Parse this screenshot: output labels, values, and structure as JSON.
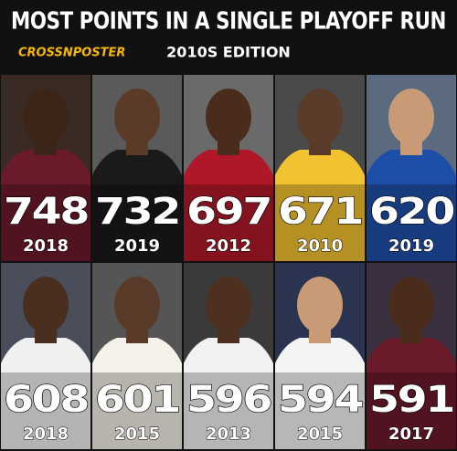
{
  "header": {
    "title": "MOST POINTS IN A SINGLE PLAYOFF RUN",
    "brand": "CROSSNPOSTER",
    "subtitle": "2010S EDITION"
  },
  "cards": [
    {
      "points": 748,
      "year": "2018"
    },
    {
      "points": 732,
      "year": "2019"
    },
    {
      "points": 697,
      "year": "2012"
    },
    {
      "points": 671,
      "year": "2010"
    },
    {
      "points": 620,
      "year": "2019"
    },
    {
      "points": 608,
      "year": "2018"
    },
    {
      "points": 601,
      "year": "2015"
    },
    {
      "points": 596,
      "year": "2013"
    },
    {
      "points": 594,
      "year": "2015"
    },
    {
      "points": 591,
      "year": "2017"
    }
  ]
}
